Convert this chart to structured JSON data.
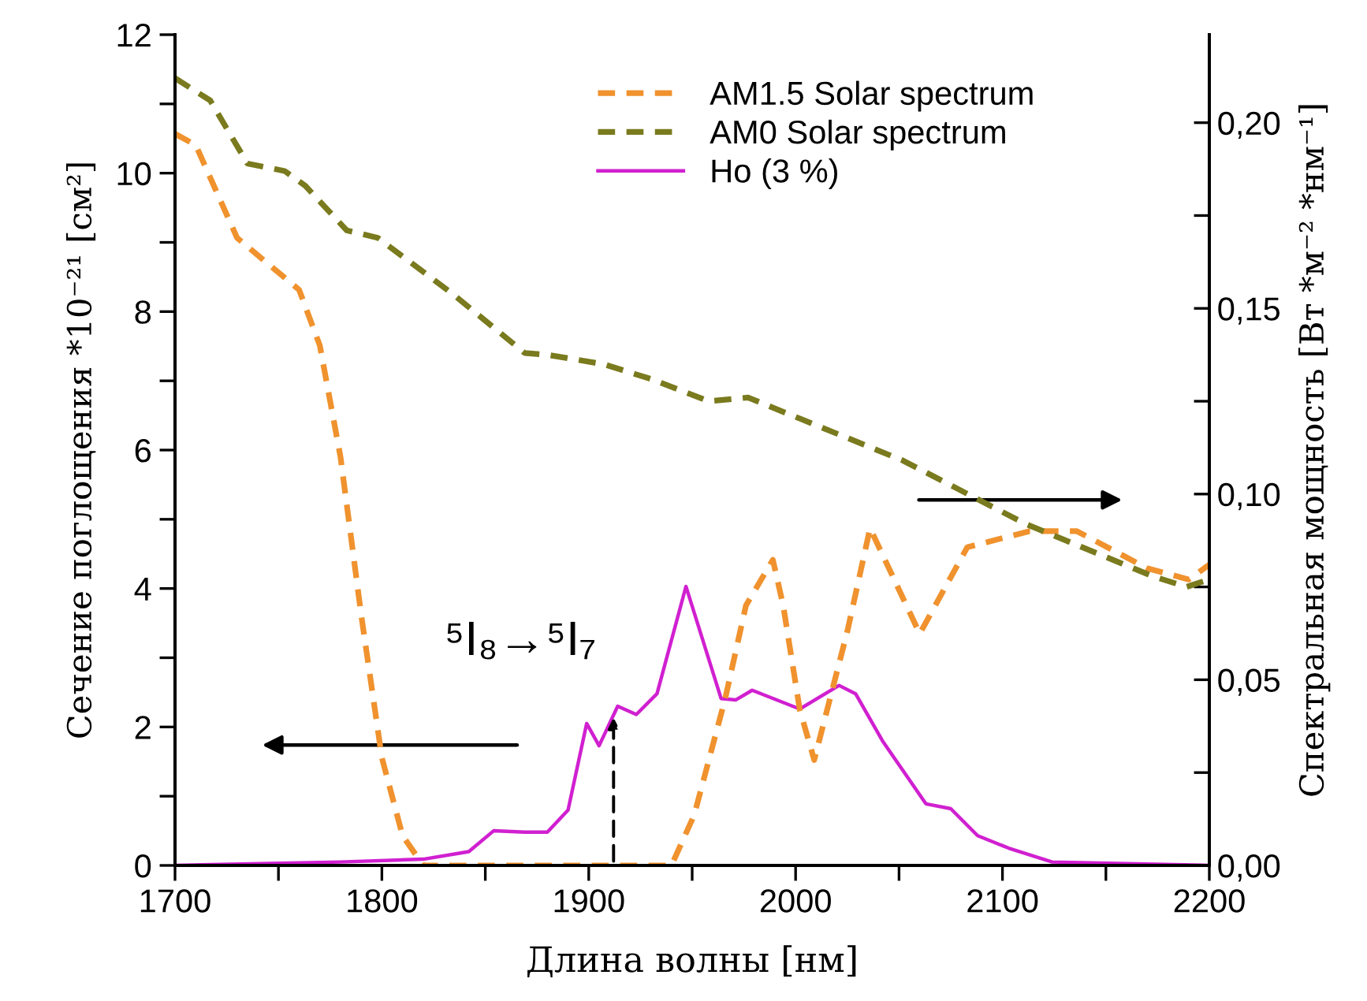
{
  "chart_data": {
    "type": "line",
    "xlabel": "Длина волны [нм]",
    "ylabel": "Сечение поглощения *10⁻²¹ [см²]",
    "y2label": "Спектральная мощность [Вт *м⁻² *нм⁻¹]",
    "xlim": [
      1700,
      2200
    ],
    "xticks": [
      1700,
      {
        "value": 1750,
        "label": null
      },
      1800,
      {
        "value": 1850,
        "label": null
      },
      1900,
      {
        "value": 1950,
        "label": null
      },
      2000,
      {
        "value": 2050,
        "label": null
      },
      2100,
      {
        "value": 2150,
        "label": null
      },
      2200
    ],
    "ylim": [
      0,
      12
    ],
    "yticks": [
      0,
      {
        "value": 1,
        "label": null
      },
      2,
      {
        "value": 3,
        "label": null
      },
      4,
      {
        "value": 5,
        "label": null
      },
      6,
      {
        "value": 7,
        "label": null
      },
      8,
      {
        "value": 9,
        "label": null
      },
      10,
      {
        "value": 11,
        "label": null
      },
      12
    ],
    "y2lim": [
      0,
      0.2237
    ],
    "y2ticks": [
      {
        "value": 0,
        "label": "0,00"
      },
      {
        "value": 0.025,
        "label": null
      },
      {
        "value": 0.05,
        "label": "0,05"
      },
      {
        "value": 0.075,
        "label": null
      },
      {
        "value": 0.1,
        "label": "0,10"
      },
      {
        "value": 0.125,
        "label": null
      },
      {
        "value": 0.15,
        "label": "0,15"
      },
      {
        "value": 0.175,
        "label": null
      },
      {
        "value": 0.2,
        "label": "0,20"
      }
    ],
    "legend": "top",
    "grid": false,
    "series": [
      {
        "name": "AM1.5 Solar spectrum",
        "color": "#f0922e",
        "axis": "y2",
        "line_style": "dashed",
        "x": [
          1700,
          1710,
          1730,
          1745,
          1760,
          1770,
          1780,
          1790,
          1800,
          1810,
          1820,
          1940,
          1951,
          1966,
          1976,
          1989,
          1994,
          2002,
          2009,
          2025,
          2036,
          2060,
          2083,
          2113,
          2136,
          2170,
          2190,
          2200
        ],
        "values": [
          0.197,
          0.194,
          0.169,
          0.162,
          0.155,
          0.14,
          0.11,
          0.0675,
          0.029,
          0.008,
          0,
          0,
          0.0136,
          0.045,
          0.07,
          0.0823,
          0.07,
          0.042,
          0.0284,
          0.063,
          0.0908,
          0.0624,
          0.0857,
          0.09,
          0.09,
          0.08,
          0.077,
          0.081
        ]
      },
      {
        "name": "AM0 Solar spectrum",
        "color": "#7a7a1e",
        "axis": "y2",
        "line_style": "dashed",
        "x": [
          1700,
          1717,
          1735,
          1753,
          1763,
          1783,
          1798,
          1834,
          1869,
          1880,
          1907,
          1930,
          1958,
          1977,
          2052,
          2111,
          2172,
          2189,
          2200
        ],
        "values": [
          0.212,
          0.206,
          0.189,
          0.187,
          0.183,
          0.171,
          0.169,
          0.154,
          0.138,
          0.1375,
          0.135,
          0.131,
          0.125,
          0.126,
          0.109,
          0.092,
          0.078,
          0.075,
          0.077
        ]
      },
      {
        "name": "Ho (3 %)",
        "color": "#d020d0",
        "line_style": "solid",
        "x": [
          1700,
          1780,
          1820,
          1842,
          1854,
          1869,
          1880,
          1890,
          1899,
          1905,
          1914,
          1923,
          1933,
          1947,
          1964,
          1971,
          1979,
          2002,
          2021,
          2029,
          2042,
          2063,
          2075,
          2088,
          2103,
          2124,
          2200
        ],
        "values": [
          0,
          0.05,
          0.09,
          0.2,
          0.5,
          0.48,
          0.48,
          0.8,
          2.05,
          1.73,
          2.3,
          2.18,
          2.48,
          4.03,
          2.41,
          2.39,
          2.53,
          2.26,
          2.6,
          2.48,
          1.8,
          0.89,
          0.82,
          0.43,
          0.25,
          0.05,
          0
        ]
      }
    ],
    "annotations": [
      {
        "text": "⁵I₈→⁵I₇",
        "x": 1912,
        "y": 2.2
      }
    ]
  }
}
